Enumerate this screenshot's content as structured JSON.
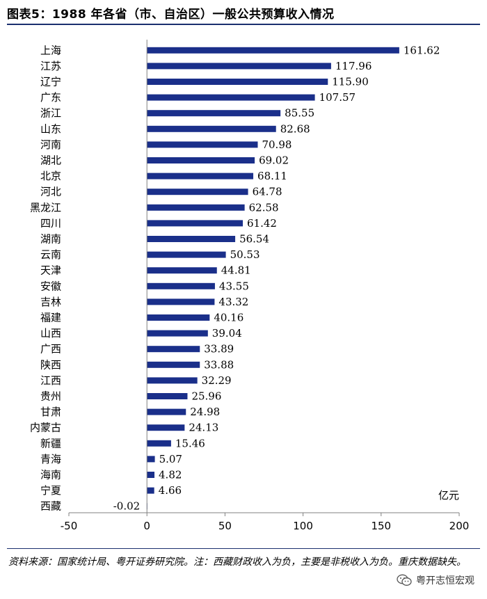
{
  "title": "图表5：1988 年各省（市、自治区）一般公共预算收入情况",
  "chart_data": {
    "type": "bar",
    "orientation": "horizontal",
    "title": "图表5：1988 年各省（市、自治区）一般公共预算收入情况",
    "categories": [
      "上海",
      "江苏",
      "辽宁",
      "广东",
      "浙江",
      "山东",
      "河南",
      "湖北",
      "北京",
      "河北",
      "黑龙江",
      "四川",
      "湖南",
      "云南",
      "天津",
      "安徽",
      "吉林",
      "福建",
      "山西",
      "广西",
      "陕西",
      "江西",
      "贵州",
      "甘肃",
      "内蒙古",
      "新疆",
      "青海",
      "海南",
      "宁夏",
      "西藏"
    ],
    "value_labels": [
      "161.62",
      "117.96",
      "115.90",
      "107.57",
      "85.55",
      "82.68",
      "70.98",
      "69.02",
      "68.11",
      "64.78",
      "62.58",
      "61.42",
      "56.54",
      "50.53",
      "44.81",
      "43.55",
      "43.32",
      "40.16",
      "39.04",
      "33.89",
      "33.88",
      "32.29",
      "25.96",
      "24.98",
      "24.13",
      "15.46",
      "5.07",
      "4.82",
      "4.66",
      "-0.02"
    ],
    "values": [
      161.62,
      117.96,
      115.9,
      107.57,
      85.55,
      82.68,
      70.98,
      69.02,
      68.11,
      64.78,
      62.58,
      61.42,
      56.54,
      50.53,
      44.81,
      43.55,
      43.32,
      40.16,
      39.04,
      33.89,
      33.88,
      32.29,
      25.96,
      24.98,
      24.13,
      15.46,
      5.07,
      4.82,
      4.66,
      -0.02
    ],
    "xlim": [
      -50,
      200
    ],
    "xticks": [
      "-50",
      "0",
      "50",
      "100",
      "150",
      "200"
    ],
    "unit": "亿元",
    "bar_color": "#1a2f8a",
    "legend": "none",
    "grid": false
  },
  "footer": {
    "source": "资料来源：国家统计局、粤开证券研究院。注：西藏财政收入为负，主要是非税收入为负。重庆数据缺失。",
    "watermark": "粤开志恒宏观",
    "watermark_icon": "wechat-icon"
  }
}
